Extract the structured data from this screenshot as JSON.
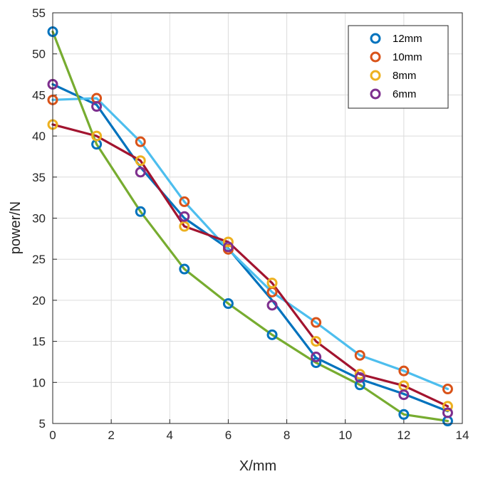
{
  "chart_data": {
    "type": "line",
    "title": "",
    "xlabel": "X/mm",
    "ylabel": "power/N",
    "xlim": [
      0,
      14
    ],
    "ylim": [
      5,
      55
    ],
    "xticks": [
      "0",
      "2",
      "4",
      "6",
      "8",
      "10",
      "12",
      "14"
    ],
    "yticks": [
      "5",
      "10",
      "15",
      "20",
      "25",
      "30",
      "35",
      "40",
      "45",
      "50",
      "55"
    ],
    "grid": true,
    "legend_position": "top-right",
    "series": [
      {
        "name": "12mm",
        "color": "#0072BD",
        "line_color": "#0072BD",
        "x": [
          0,
          1.5,
          3,
          4.5,
          6,
          7.5,
          9,
          10.5,
          12,
          13.5
        ],
        "marker_y": [
          52.7,
          39.0,
          30.8,
          23.8,
          19.6,
          15.8,
          12.4,
          9.7,
          6.1,
          5.3
        ],
        "line_y": [
          46.3,
          43.8,
          36.2,
          30.0,
          26.3,
          20.0,
          13.0,
          10.4,
          8.6,
          6.5
        ]
      },
      {
        "name": "10mm",
        "color": "#D95319",
        "line_color": "#4DBEEE",
        "x": [
          0,
          1.5,
          3,
          4.5,
          6,
          7.5,
          9,
          10.5,
          12,
          13.5
        ],
        "marker_y": [
          44.4,
          44.6,
          39.3,
          32.0,
          26.2,
          21.0,
          17.3,
          13.3,
          11.4,
          9.2
        ],
        "line_y": [
          44.4,
          44.6,
          39.3,
          32.0,
          26.2,
          21.0,
          17.3,
          13.3,
          11.4,
          9.2
        ]
      },
      {
        "name": "8mm",
        "color": "#EDB120",
        "line_color": "#A2142F",
        "x": [
          0,
          1.5,
          3,
          4.5,
          6,
          7.5,
          9,
          10.5,
          12,
          13.5
        ],
        "marker_y": [
          41.4,
          40.0,
          37.0,
          29.0,
          27.1,
          22.1,
          15.0,
          11.0,
          9.6,
          7.1
        ],
        "line_y": [
          41.4,
          40.0,
          37.0,
          29.0,
          27.1,
          22.1,
          15.0,
          11.0,
          9.6,
          7.1
        ]
      },
      {
        "name": "6mm",
        "color": "#7E2F8E",
        "line_color": "#77AC30",
        "x": [
          0,
          1.5,
          3,
          4.5,
          6,
          7.5,
          9,
          10.5,
          12,
          13.5
        ],
        "marker_y": [
          46.3,
          43.6,
          35.6,
          30.2,
          26.5,
          19.4,
          13.1,
          10.6,
          8.5,
          6.3
        ],
        "line_y": [
          52.7,
          39.0,
          30.8,
          23.8,
          19.6,
          15.8,
          12.4,
          9.7,
          6.1,
          5.3
        ]
      }
    ]
  }
}
